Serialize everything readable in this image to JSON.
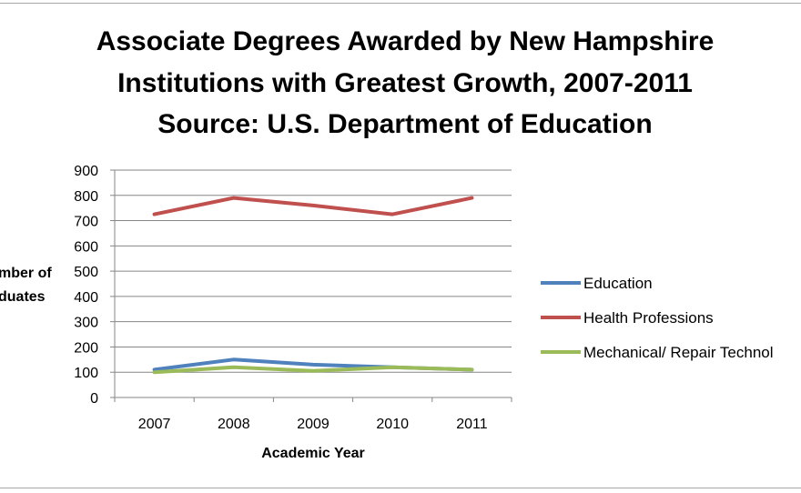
{
  "chart_data": {
    "type": "line",
    "title_lines": [
      "Associate Degrees Awarded by New Hampshire",
      "Institutions with Greatest Growth, 2007-2011",
      "Source: U.S. Department of Education"
    ],
    "xlabel": "Academic Year",
    "ylabel_lines": [
      "mber of",
      "duates"
    ],
    "categories": [
      "2007",
      "2008",
      "2009",
      "2010",
      "2011"
    ],
    "ylim": [
      0,
      900
    ],
    "yticks": [
      "0",
      "100",
      "200",
      "300",
      "400",
      "500",
      "600",
      "700",
      "800",
      "900"
    ],
    "grid": true,
    "legend_position": "right",
    "series": [
      {
        "name": "Education",
        "color": "#4f81bd",
        "values": [
          110,
          150,
          130,
          120,
          110
        ]
      },
      {
        "name": "Health Professions",
        "color": "#c0504d",
        "values": [
          725,
          790,
          760,
          725,
          790
        ]
      },
      {
        "name": "Mechanical/ Repair Technol",
        "color": "#9bbb59",
        "values": [
          100,
          120,
          105,
          120,
          110
        ]
      }
    ]
  }
}
